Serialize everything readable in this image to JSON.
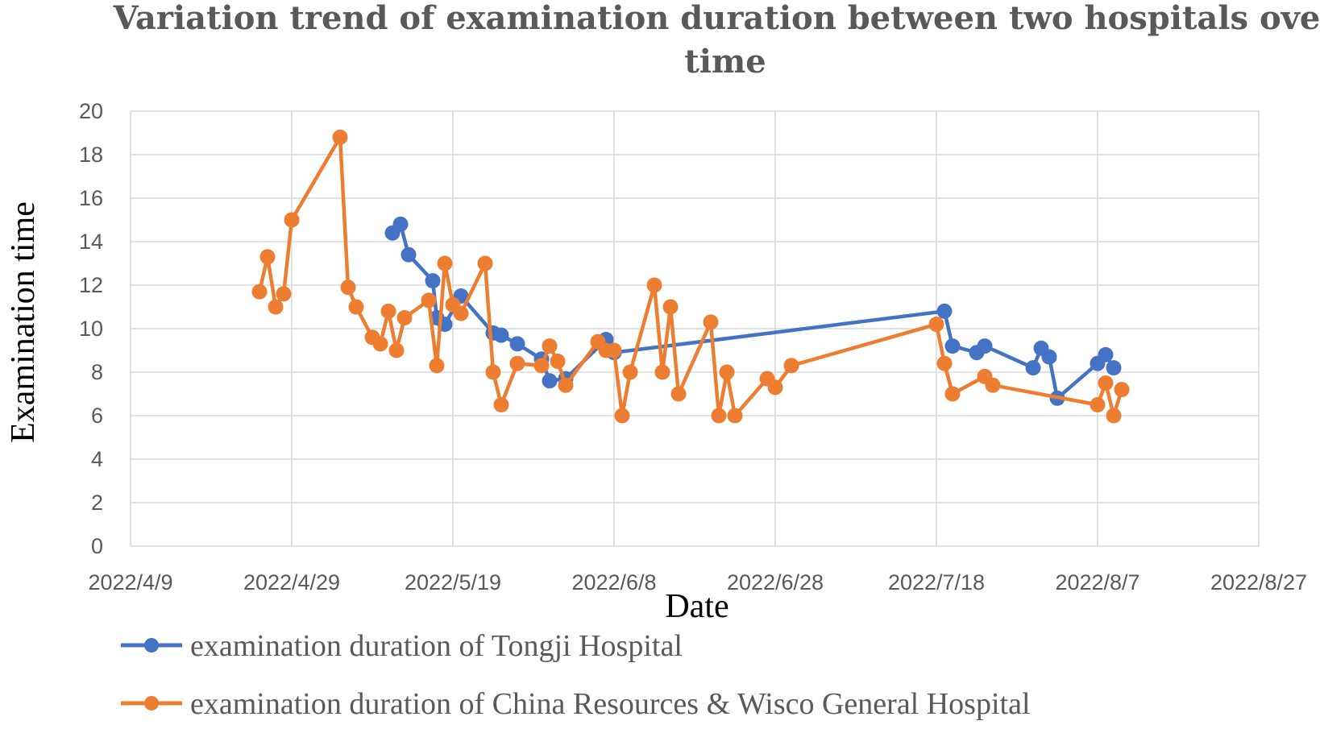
{
  "chart_data": {
    "type": "line",
    "title_lines": [
      "Variation trend of examination duration between two hospitals over",
      "time"
    ],
    "xlabel": "Date",
    "ylabel": "Examination time",
    "ylim": [
      0,
      20
    ],
    "yticks": [
      "0",
      "2",
      "4",
      "6",
      "8",
      "10",
      "12",
      "14",
      "16",
      "18",
      "20"
    ],
    "xlim": [
      0,
      140
    ],
    "xticks": [
      {
        "day": 0,
        "label": "2022/4/9"
      },
      {
        "day": 20,
        "label": "2022/4/29"
      },
      {
        "day": 40,
        "label": "2022/5/19"
      },
      {
        "day": 60,
        "label": "2022/6/8"
      },
      {
        "day": 80,
        "label": "2022/6/28"
      },
      {
        "day": 100,
        "label": "2022/7/18"
      },
      {
        "day": 120,
        "label": "2022/8/7"
      },
      {
        "day": 140,
        "label": "2022/8/27"
      }
    ],
    "grid": true,
    "legend_position": "bottom",
    "series": [
      {
        "name": "examination duration of Tongji Hospital",
        "color": "#4472c4",
        "points": [
          [
            32.5,
            14.4
          ],
          [
            33.5,
            14.8
          ],
          [
            34.5,
            13.4
          ],
          [
            37.5,
            12.2
          ],
          [
            38.0,
            10.5
          ],
          [
            39.0,
            10.2
          ],
          [
            41.0,
            11.5
          ],
          [
            45.0,
            9.8
          ],
          [
            46.0,
            9.7
          ],
          [
            48.0,
            9.3
          ],
          [
            51.0,
            8.6
          ],
          [
            52.0,
            7.6
          ],
          [
            54.0,
            7.7
          ],
          [
            59.0,
            9.5
          ],
          [
            60.0,
            8.9
          ],
          [
            101.0,
            10.8
          ],
          [
            102.0,
            9.2
          ],
          [
            105.0,
            8.9
          ],
          [
            106.0,
            9.2
          ],
          [
            112.0,
            8.2
          ],
          [
            113.0,
            9.1
          ],
          [
            114.0,
            8.7
          ],
          [
            115.0,
            6.8
          ],
          [
            120.0,
            8.4
          ],
          [
            121.0,
            8.8
          ],
          [
            122.0,
            8.2
          ]
        ]
      },
      {
        "name": "examination duration of China Resources & Wisco General Hospital",
        "color": "#ed7d31",
        "points": [
          [
            16.0,
            11.7
          ],
          [
            17.0,
            13.3
          ],
          [
            18.0,
            11.0
          ],
          [
            19.0,
            11.6
          ],
          [
            20.0,
            15.0
          ],
          [
            26.0,
            18.8
          ],
          [
            27.0,
            11.9
          ],
          [
            28.0,
            11.0
          ],
          [
            30.0,
            9.6
          ],
          [
            31.0,
            9.3
          ],
          [
            32.0,
            10.8
          ],
          [
            33.0,
            9.0
          ],
          [
            34.0,
            10.5
          ],
          [
            37.0,
            11.3
          ],
          [
            38.0,
            8.3
          ],
          [
            39.0,
            13.0
          ],
          [
            40.0,
            11.1
          ],
          [
            41.0,
            10.7
          ],
          [
            44.0,
            13.0
          ],
          [
            45.0,
            8.0
          ],
          [
            46.0,
            6.5
          ],
          [
            48.0,
            8.4
          ],
          [
            51.0,
            8.3
          ],
          [
            52.0,
            9.2
          ],
          [
            53.0,
            8.5
          ],
          [
            54.0,
            7.4
          ],
          [
            58.0,
            9.4
          ],
          [
            59.0,
            9.0
          ],
          [
            60.0,
            9.0
          ],
          [
            61.0,
            6.0
          ],
          [
            62.0,
            8.0
          ],
          [
            65.0,
            12.0
          ],
          [
            66.0,
            8.0
          ],
          [
            67.0,
            11.0
          ],
          [
            68.0,
            7.0
          ],
          [
            72.0,
            10.3
          ],
          [
            73.0,
            6.0
          ],
          [
            74.0,
            8.0
          ],
          [
            75.0,
            6.0
          ],
          [
            79.0,
            7.7
          ],
          [
            80.0,
            7.3
          ],
          [
            82.0,
            8.3
          ],
          [
            100.0,
            10.2
          ],
          [
            101.0,
            8.4
          ],
          [
            102.0,
            7.0
          ],
          [
            106.0,
            7.8
          ],
          [
            107.0,
            7.4
          ],
          [
            120.0,
            6.5
          ],
          [
            121.0,
            7.5
          ],
          [
            122.0,
            6.0
          ],
          [
            123.0,
            7.2
          ]
        ]
      }
    ]
  }
}
